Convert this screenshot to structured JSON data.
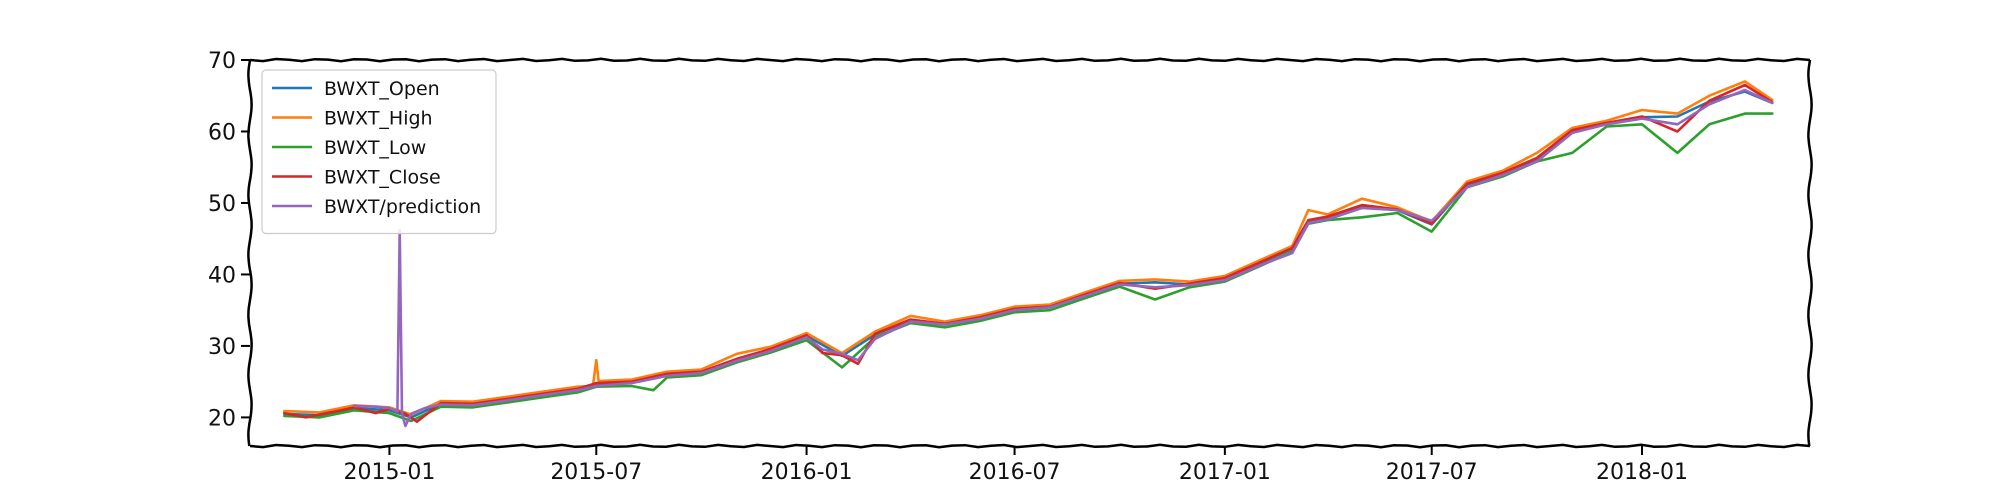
{
  "chart_data": {
    "type": "line",
    "title": "",
    "xlabel": "",
    "ylabel": "",
    "xlim": [
      "2014-09-01",
      "2018-05-28"
    ],
    "ylim": [
      16,
      70
    ],
    "x_ticks": [
      "2015-01",
      "2015-07",
      "2016-01",
      "2016-07",
      "2017-01",
      "2017-07",
      "2018-01"
    ],
    "y_ticks": [
      20,
      30,
      40,
      50,
      60,
      70
    ],
    "grid": false,
    "legend_position": "top-left",
    "series": [
      {
        "name": "BWXT_Open",
        "color": "#1f77b4",
        "points": [
          [
            "2014-10-01",
            20.5
          ],
          [
            "2014-11-01",
            20.3
          ],
          [
            "2014-12-01",
            21.3
          ],
          [
            "2015-01-01",
            21.0
          ],
          [
            "2015-01-20",
            20.0
          ],
          [
            "2015-02-15",
            21.9
          ],
          [
            "2015-03-15",
            21.8
          ],
          [
            "2015-04-15",
            22.5
          ],
          [
            "2015-05-15",
            23.2
          ],
          [
            "2015-06-15",
            23.9
          ],
          [
            "2015-07-01",
            24.7
          ],
          [
            "2015-08-01",
            24.9
          ],
          [
            "2015-09-01",
            26.0
          ],
          [
            "2015-10-01",
            26.3
          ],
          [
            "2015-11-01",
            28.1
          ],
          [
            "2015-12-01",
            29.5
          ],
          [
            "2016-01-01",
            31.4
          ],
          [
            "2016-02-01",
            28.6
          ],
          [
            "2016-03-01",
            31.6
          ],
          [
            "2016-04-01",
            33.6
          ],
          [
            "2016-05-01",
            33.0
          ],
          [
            "2016-06-01",
            33.9
          ],
          [
            "2016-07-01",
            35.1
          ],
          [
            "2016-08-01",
            35.4
          ],
          [
            "2016-09-01",
            37.1
          ],
          [
            "2016-10-01",
            38.7
          ],
          [
            "2016-11-01",
            38.9
          ],
          [
            "2016-12-01",
            38.6
          ],
          [
            "2017-01-01",
            39.4
          ],
          [
            "2017-02-01",
            41.6
          ],
          [
            "2017-03-01",
            43.6
          ],
          [
            "2017-03-15",
            47.5
          ],
          [
            "2017-04-01",
            48.0
          ],
          [
            "2017-05-01",
            49.6
          ],
          [
            "2017-06-01",
            49.0
          ],
          [
            "2017-07-01",
            47.0
          ],
          [
            "2017-08-01",
            52.6
          ],
          [
            "2017-09-01",
            54.1
          ],
          [
            "2017-10-01",
            56.2
          ],
          [
            "2017-11-01",
            60.1
          ],
          [
            "2017-12-01",
            61.1
          ],
          [
            "2018-01-01",
            62.0
          ],
          [
            "2018-02-01",
            62.1
          ],
          [
            "2018-03-01",
            64.2
          ],
          [
            "2018-04-01",
            65.6
          ],
          [
            "2018-04-25",
            64.0
          ]
        ]
      },
      {
        "name": "BWXT_High",
        "color": "#ff7f0e",
        "points": [
          [
            "2014-10-01",
            20.9
          ],
          [
            "2014-11-01",
            20.7
          ],
          [
            "2014-12-01",
            21.7
          ],
          [
            "2015-01-01",
            21.4
          ],
          [
            "2015-01-20",
            20.4
          ],
          [
            "2015-02-15",
            22.3
          ],
          [
            "2015-03-15",
            22.2
          ],
          [
            "2015-04-15",
            22.9
          ],
          [
            "2015-05-15",
            23.6
          ],
          [
            "2015-06-15",
            24.3
          ],
          [
            "2015-06-28",
            24.4
          ],
          [
            "2015-07-01",
            28.0
          ],
          [
            "2015-07-03",
            25.1
          ],
          [
            "2015-08-01",
            25.3
          ],
          [
            "2015-09-01",
            26.4
          ],
          [
            "2015-10-01",
            26.7
          ],
          [
            "2015-11-01",
            28.9
          ],
          [
            "2015-12-01",
            29.9
          ],
          [
            "2016-01-01",
            31.8
          ],
          [
            "2016-02-01",
            29.0
          ],
          [
            "2016-03-01",
            32.0
          ],
          [
            "2016-04-01",
            34.2
          ],
          [
            "2016-05-01",
            33.4
          ],
          [
            "2016-06-01",
            34.3
          ],
          [
            "2016-07-01",
            35.5
          ],
          [
            "2016-08-01",
            35.8
          ],
          [
            "2016-09-01",
            37.5
          ],
          [
            "2016-10-01",
            39.1
          ],
          [
            "2016-11-01",
            39.3
          ],
          [
            "2016-12-01",
            39.0
          ],
          [
            "2017-01-01",
            39.8
          ],
          [
            "2017-02-01",
            42.0
          ],
          [
            "2017-03-01",
            44.0
          ],
          [
            "2017-03-15",
            49.0
          ],
          [
            "2017-04-01",
            48.4
          ],
          [
            "2017-05-01",
            50.6
          ],
          [
            "2017-06-01",
            49.4
          ],
          [
            "2017-07-01",
            47.4
          ],
          [
            "2017-08-01",
            53.0
          ],
          [
            "2017-09-01",
            54.5
          ],
          [
            "2017-10-01",
            57.0
          ],
          [
            "2017-11-01",
            60.5
          ],
          [
            "2017-12-01",
            61.5
          ],
          [
            "2018-01-01",
            63.0
          ],
          [
            "2018-02-01",
            62.5
          ],
          [
            "2018-03-01",
            65.0
          ],
          [
            "2018-04-01",
            67.0
          ],
          [
            "2018-04-25",
            64.4
          ]
        ]
      },
      {
        "name": "BWXT_Low",
        "color": "#2ca02c",
        "points": [
          [
            "2014-10-01",
            20.2
          ],
          [
            "2014-11-01",
            20.0
          ],
          [
            "2014-12-01",
            21.0
          ],
          [
            "2015-01-01",
            20.6
          ],
          [
            "2015-01-20",
            19.5
          ],
          [
            "2015-02-15",
            21.5
          ],
          [
            "2015-03-15",
            21.4
          ],
          [
            "2015-04-15",
            22.1
          ],
          [
            "2015-05-15",
            22.8
          ],
          [
            "2015-06-15",
            23.5
          ],
          [
            "2015-07-01",
            24.3
          ],
          [
            "2015-08-01",
            24.4
          ],
          [
            "2015-08-20",
            23.8
          ],
          [
            "2015-09-01",
            25.6
          ],
          [
            "2015-10-01",
            25.9
          ],
          [
            "2015-11-01",
            27.7
          ],
          [
            "2015-12-01",
            29.1
          ],
          [
            "2016-01-01",
            30.8
          ],
          [
            "2016-02-01",
            27.0
          ],
          [
            "2016-03-01",
            31.2
          ],
          [
            "2016-04-01",
            33.2
          ],
          [
            "2016-05-01",
            32.6
          ],
          [
            "2016-06-01",
            33.5
          ],
          [
            "2016-07-01",
            34.7
          ],
          [
            "2016-08-01",
            35.0
          ],
          [
            "2016-09-01",
            36.7
          ],
          [
            "2016-10-01",
            38.3
          ],
          [
            "2016-11-01",
            36.5
          ],
          [
            "2016-12-01",
            38.2
          ],
          [
            "2017-01-01",
            39.0
          ],
          [
            "2017-02-01",
            41.2
          ],
          [
            "2017-03-01",
            43.2
          ],
          [
            "2017-03-15",
            47.1
          ],
          [
            "2017-04-01",
            47.6
          ],
          [
            "2017-05-01",
            48.0
          ],
          [
            "2017-06-01",
            48.6
          ],
          [
            "2017-07-01",
            46.0
          ],
          [
            "2017-08-01",
            52.2
          ],
          [
            "2017-09-01",
            53.7
          ],
          [
            "2017-10-01",
            55.8
          ],
          [
            "2017-11-01",
            57.0
          ],
          [
            "2017-12-01",
            60.7
          ],
          [
            "2018-01-01",
            61.0
          ],
          [
            "2018-02-01",
            57.0
          ],
          [
            "2018-03-01",
            61.0
          ],
          [
            "2018-04-01",
            62.5
          ],
          [
            "2018-04-25",
            62.5
          ]
        ]
      },
      {
        "name": "BWXT_Close",
        "color": "#d62728",
        "points": [
          [
            "2014-10-01",
            20.6
          ],
          [
            "2014-10-20",
            20.0
          ],
          [
            "2014-11-01",
            20.4
          ],
          [
            "2014-11-20",
            21.0
          ],
          [
            "2014-12-01",
            21.4
          ],
          [
            "2014-12-20",
            20.6
          ],
          [
            "2015-01-01",
            21.2
          ],
          [
            "2015-01-15",
            20.5
          ],
          [
            "2015-01-25",
            19.4
          ],
          [
            "2015-02-15",
            22.0
          ],
          [
            "2015-03-15",
            21.9
          ],
          [
            "2015-04-15",
            22.6
          ],
          [
            "2015-05-15",
            23.3
          ],
          [
            "2015-06-15",
            24.0
          ],
          [
            "2015-07-01",
            24.8
          ],
          [
            "2015-08-01",
            25.0
          ],
          [
            "2015-09-01",
            26.1
          ],
          [
            "2015-10-01",
            26.4
          ],
          [
            "2015-11-01",
            28.2
          ],
          [
            "2015-12-01",
            29.6
          ],
          [
            "2016-01-01",
            31.5
          ],
          [
            "2016-01-15",
            29.0
          ],
          [
            "2016-02-01",
            28.7
          ],
          [
            "2016-02-15",
            27.5
          ],
          [
            "2016-03-01",
            31.7
          ],
          [
            "2016-04-01",
            33.7
          ],
          [
            "2016-05-01",
            33.1
          ],
          [
            "2016-06-01",
            34.0
          ],
          [
            "2016-07-01",
            35.2
          ],
          [
            "2016-08-01",
            35.5
          ],
          [
            "2016-09-01",
            37.2
          ],
          [
            "2016-10-01",
            38.8
          ],
          [
            "2016-11-01",
            38.0
          ],
          [
            "2016-12-01",
            38.7
          ],
          [
            "2017-01-01",
            39.5
          ],
          [
            "2017-02-01",
            41.7
          ],
          [
            "2017-03-01",
            43.7
          ],
          [
            "2017-03-15",
            47.6
          ],
          [
            "2017-04-01",
            48.1
          ],
          [
            "2017-05-01",
            49.7
          ],
          [
            "2017-06-01",
            49.1
          ],
          [
            "2017-07-01",
            47.1
          ],
          [
            "2017-08-01",
            52.7
          ],
          [
            "2017-09-01",
            54.2
          ],
          [
            "2017-10-01",
            56.3
          ],
          [
            "2017-11-01",
            60.2
          ],
          [
            "2017-12-01",
            61.2
          ],
          [
            "2018-01-01",
            62.1
          ],
          [
            "2018-02-01",
            60.0
          ],
          [
            "2018-03-01",
            64.3
          ],
          [
            "2018-04-01",
            66.5
          ],
          [
            "2018-04-25",
            64.1
          ]
        ]
      },
      {
        "name": "BWXT/prediction",
        "color": "#9467bd",
        "points": [
          [
            "2014-12-01",
            21.6
          ],
          [
            "2014-12-20",
            21.5
          ],
          [
            "2015-01-01",
            21.3
          ],
          [
            "2015-01-08",
            20.8
          ],
          [
            "2015-01-10",
            46.2
          ],
          [
            "2015-01-12",
            20.5
          ],
          [
            "2015-01-15",
            18.8
          ],
          [
            "2015-01-20",
            20.5
          ],
          [
            "2015-02-01",
            21.3
          ],
          [
            "2015-02-15",
            21.8
          ],
          [
            "2015-03-15",
            21.7
          ],
          [
            "2015-04-15",
            22.4
          ],
          [
            "2015-05-15",
            23.1
          ],
          [
            "2015-06-15",
            23.8
          ],
          [
            "2015-07-01",
            24.4
          ],
          [
            "2015-08-01",
            24.8
          ],
          [
            "2015-09-01",
            25.8
          ],
          [
            "2015-10-01",
            26.2
          ],
          [
            "2015-11-01",
            27.9
          ],
          [
            "2015-12-01",
            29.3
          ],
          [
            "2016-01-01",
            31.2
          ],
          [
            "2016-01-15",
            29.5
          ],
          [
            "2016-02-01",
            28.9
          ],
          [
            "2016-02-15",
            28.0
          ],
          [
            "2016-03-01",
            31.0
          ],
          [
            "2016-04-01",
            33.4
          ],
          [
            "2016-05-01",
            33.0
          ],
          [
            "2016-06-01",
            33.8
          ],
          [
            "2016-07-01",
            35.0
          ],
          [
            "2016-08-01",
            35.4
          ],
          [
            "2016-09-01",
            37.0
          ],
          [
            "2016-10-01",
            38.6
          ],
          [
            "2016-11-01",
            38.2
          ],
          [
            "2016-12-01",
            38.5
          ],
          [
            "2017-01-01",
            39.2
          ],
          [
            "2017-02-01",
            41.3
          ],
          [
            "2017-03-01",
            43.0
          ],
          [
            "2017-03-15",
            47.2
          ],
          [
            "2017-04-01",
            47.7
          ],
          [
            "2017-05-01",
            49.3
          ],
          [
            "2017-06-01",
            49.0
          ],
          [
            "2017-07-01",
            47.5
          ],
          [
            "2017-08-01",
            52.2
          ],
          [
            "2017-09-01",
            53.9
          ],
          [
            "2017-10-01",
            55.8
          ],
          [
            "2017-11-01",
            59.8
          ],
          [
            "2017-12-01",
            61.0
          ],
          [
            "2018-01-01",
            61.8
          ],
          [
            "2018-02-01",
            61.0
          ],
          [
            "2018-03-01",
            63.8
          ],
          [
            "2018-04-01",
            65.8
          ],
          [
            "2018-04-25",
            64.0
          ]
        ]
      }
    ]
  }
}
